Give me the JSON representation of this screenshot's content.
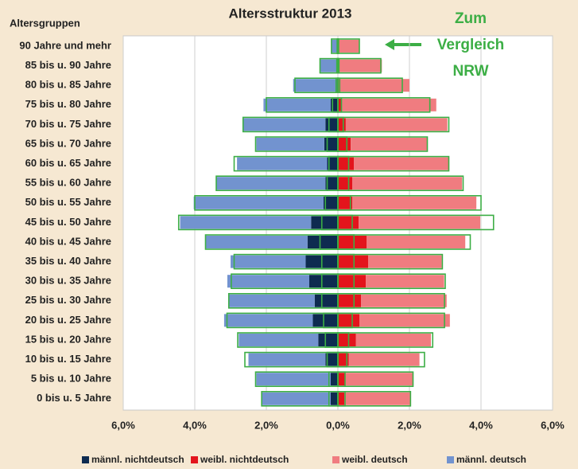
{
  "chart_data": {
    "type": "pyramid",
    "title": "Altersstruktur 2013",
    "category_header": "Altersgruppen",
    "categories": [
      "90 Jahre und mehr",
      "85 bis u. 90 Jahre",
      "80 bis u. 85 Jahre",
      "75 bis u. 80 Jahre",
      "70 bis u. 75 Jahre",
      "65 bis u. 70 Jahre",
      "60 bis u. 65 Jahre",
      "55 bis u. 60 Jahre",
      "50 bis u. 55 Jahre",
      "45 bis u. 50 Jahre",
      "40 bis u. 45 Jahre",
      "35 bis u. 40 Jahre",
      "30 bis u. 35 Jahre",
      "25 bis u. 30 Jahre",
      "20 bis u. 25 Jahre",
      "15 bis u. 20 Jahre",
      "10 bis u. 15 Jahre",
      "5 bis u. 10 Jahre",
      "0 bis u. 5 Jahre"
    ],
    "series": [
      {
        "name": "männl. nichtdeutsch",
        "color": "#0e2b50",
        "values": [
          -0.02,
          -0.01,
          -0.03,
          -0.2,
          -0.35,
          -0.38,
          -0.3,
          -0.35,
          -0.4,
          -0.75,
          -0.85,
          -0.9,
          -0.8,
          -0.65,
          -0.7,
          -0.55,
          -0.35,
          -0.2,
          -0.2
        ]
      },
      {
        "name": "weibl. nichtdeutsch",
        "color": "#e3141c",
        "values": [
          0.02,
          0.02,
          0.03,
          0.1,
          0.22,
          0.36,
          0.45,
          0.4,
          0.4,
          0.58,
          0.8,
          0.85,
          0.78,
          0.65,
          0.6,
          0.5,
          0.3,
          0.2,
          0.18
        ]
      },
      {
        "name": "weibl. deutsch",
        "color": "#f07c80",
        "values": [
          0.58,
          1.21,
          1.97,
          2.65,
          2.84,
          2.14,
          2.64,
          3.07,
          3.47,
          3.4,
          2.76,
          2.05,
          2.19,
          2.39,
          2.53,
          2.1,
          1.98,
          1.9,
          1.85
        ]
      },
      {
        "name": "männl. deutsch",
        "color": "#7293cf",
        "values": [
          -0.16,
          -0.5,
          -1.22,
          -1.88,
          -2.29,
          -1.9,
          -2.52,
          -3.05,
          -3.63,
          -3.66,
          -2.86,
          -2.1,
          -2.29,
          -2.41,
          -2.48,
          -2.22,
          -2.15,
          -2.08,
          -1.93
        ]
      }
    ],
    "comparison": {
      "label": [
        "Zum",
        "Vergleich",
        "NRW"
      ],
      "color": "#3cae45",
      "male_total": [
        -0.18,
        -0.5,
        -1.2,
        -2.0,
        -2.65,
        -2.3,
        -2.9,
        -3.4,
        -4.0,
        -4.45,
        -3.7,
        -2.9,
        -2.98,
        -3.05,
        -3.1,
        -2.8,
        -2.6,
        -2.3,
        -2.13
      ],
      "female_total": [
        0.6,
        1.2,
        1.8,
        2.57,
        3.1,
        2.5,
        3.1,
        3.5,
        4.0,
        4.35,
        3.7,
        2.92,
        3.0,
        2.98,
        2.98,
        2.65,
        2.42,
        2.1,
        2.03
      ],
      "male_nichtdeutsch": [
        -0.02,
        -0.03,
        -0.05,
        -0.15,
        -0.25,
        -0.3,
        -0.25,
        -0.3,
        -0.35,
        -0.45,
        -0.5,
        -0.45,
        -0.45,
        -0.45,
        -0.4,
        -0.35,
        -0.3,
        -0.25,
        -0.25
      ],
      "female_nichtdeutsch": [
        0.02,
        0.03,
        0.05,
        0.1,
        0.15,
        0.25,
        0.3,
        0.3,
        0.35,
        0.4,
        0.45,
        0.45,
        0.45,
        0.45,
        0.4,
        0.3,
        0.25,
        0.2,
        0.2
      ]
    },
    "xlim": [
      -6,
      6
    ],
    "xticks": [
      {
        "value": -6,
        "label": "6,0%"
      },
      {
        "value": -4,
        "label": "4,0%"
      },
      {
        "value": -2,
        "label": "2,0%"
      },
      {
        "value": 0,
        "label": "0,0%"
      },
      {
        "value": 2,
        "label": "2,0%"
      },
      {
        "value": 4,
        "label": "4,0%"
      },
      {
        "value": 6,
        "label": "6,0%"
      }
    ],
    "grid": true
  }
}
